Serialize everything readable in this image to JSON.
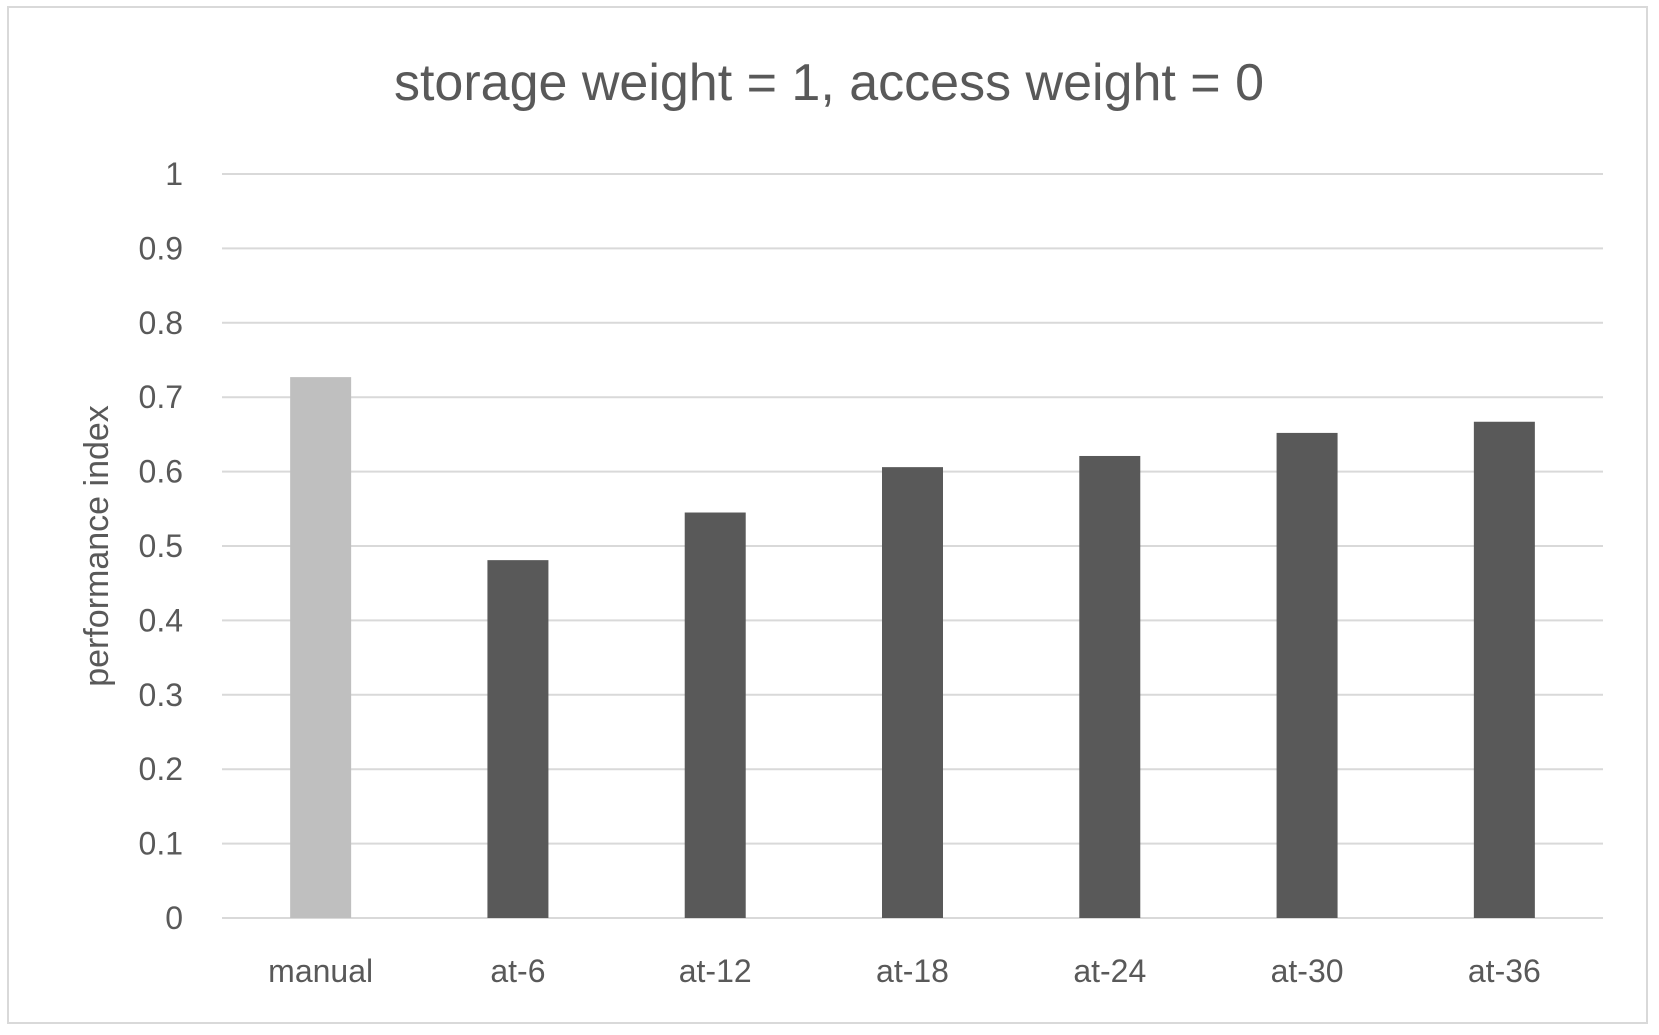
{
  "chart_data": {
    "type": "bar",
    "title": "storage weight = 1, access weight = 0",
    "xlabel": "",
    "ylabel": "performance index",
    "categories": [
      "manual",
      "at-6",
      "at-12",
      "at-18",
      "at-24",
      "at-30",
      "at-36"
    ],
    "values": [
      0.727,
      0.481,
      0.545,
      0.606,
      0.621,
      0.652,
      0.667
    ],
    "bar_colors": [
      "#bfbfbf",
      "#595959",
      "#595959",
      "#595959",
      "#595959",
      "#595959",
      "#595959"
    ],
    "ylim": [
      0,
      1
    ],
    "yticks": [
      "0",
      "0.1",
      "0.2",
      "0.3",
      "0.4",
      "0.5",
      "0.6",
      "0.7",
      "0.8",
      "0.9",
      "1"
    ],
    "grid": true,
    "legend": "none"
  }
}
